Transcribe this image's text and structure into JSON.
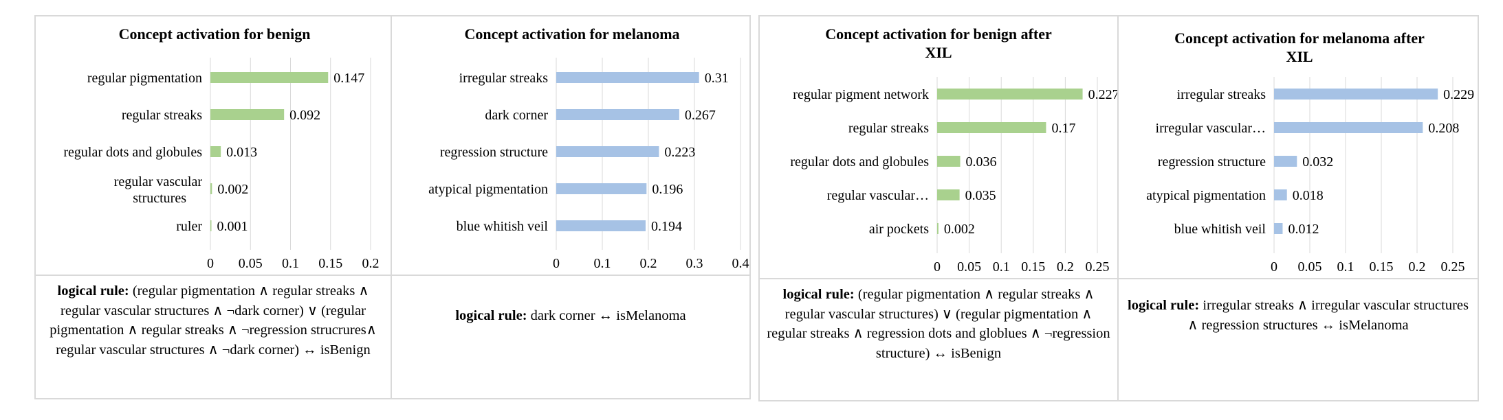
{
  "colors": {
    "benign": "#a9d18e",
    "melanoma": "#a6c2e5",
    "grid": "#d9d9d9"
  },
  "chart_data": [
    {
      "type": "bar",
      "title": "Concept activation for benign",
      "categories": [
        "regular pigmentation",
        "regular streaks",
        "regular dots and globules",
        "regular vascular structures",
        "ruler"
      ],
      "values": [
        0.147,
        0.092,
        0.013,
        0.002,
        0.001
      ],
      "value_labels": [
        "0.147",
        "0.092",
        "0.013",
        "0.002",
        "0.001"
      ],
      "xlim": [
        0,
        0.2
      ],
      "ticks": [
        0,
        0.05,
        0.1,
        0.15,
        0.2
      ],
      "tick_labels": [
        "0",
        "0.05",
        "0.1",
        "0.15",
        "0.2"
      ],
      "color": "#a9d18e",
      "grid": true
    },
    {
      "type": "bar",
      "title": "Concept activation for melanoma",
      "categories": [
        "irregular streaks",
        "dark corner",
        "regression structure",
        "atypical pigmentation",
        "blue whitish veil"
      ],
      "values": [
        0.31,
        0.267,
        0.223,
        0.196,
        0.194
      ],
      "value_labels": [
        "0.31",
        "0.267",
        "0.223",
        "0.196",
        "0.194"
      ],
      "xlim": [
        0,
        0.4
      ],
      "ticks": [
        0,
        0.1,
        0.2,
        0.3,
        0.4
      ],
      "tick_labels": [
        "0",
        "0.1",
        "0.2",
        "0.3",
        "0.4"
      ],
      "color": "#a6c2e5",
      "grid": true
    },
    {
      "type": "bar",
      "title": "Concept activation for benign after XIL",
      "categories": [
        "regular pigment network",
        "regular streaks",
        "regular dots and globules",
        "regular vascular…",
        "air pockets"
      ],
      "values": [
        0.227,
        0.17,
        0.036,
        0.035,
        0.002
      ],
      "value_labels": [
        "0.227",
        "0.17",
        "0.036",
        "0.035",
        "0.002"
      ],
      "xlim": [
        0,
        0.25
      ],
      "ticks": [
        0,
        0.05,
        0.1,
        0.15,
        0.2,
        0.25
      ],
      "tick_labels": [
        "0",
        "0.05",
        "0.1",
        "0.15",
        "0.2",
        "0.25"
      ],
      "color": "#a9d18e",
      "grid": true
    },
    {
      "type": "bar",
      "title": "Concept activation for melanoma after XIL",
      "categories": [
        "irregular streaks",
        "irregular vascular…",
        "regression structure",
        "atypical pigmentation",
        "blue whitish veil"
      ],
      "values": [
        0.229,
        0.208,
        0.032,
        0.018,
        0.012
      ],
      "value_labels": [
        "0.229",
        "0.208",
        "0.032",
        "0.018",
        "0.012"
      ],
      "xlim": [
        0,
        0.25
      ],
      "ticks": [
        0,
        0.05,
        0.1,
        0.15,
        0.2,
        0.25
      ],
      "tick_labels": [
        "0",
        "0.05",
        "0.1",
        "0.15",
        "0.2",
        "0.25"
      ],
      "color": "#a6c2e5",
      "grid": true
    }
  ],
  "rules": [
    {
      "label": "logical rule:",
      "text": "(regular pigmentation ∧ regular streaks ∧ regular vascular structures ∧ ¬dark corner) ∨ (regular pigmentation ∧ regular streaks ∧ ¬regression strucrures∧ regular vascular structures ∧ ¬dark corner)  ↔ isBenign"
    },
    {
      "label": "logical rule:",
      "text": "dark corner ↔ isMelanoma"
    },
    {
      "label": "logical rule:",
      "text": "(regular pigmentation ∧ regular streaks ∧ regular vascular structures) ∨ (regular pigmentation ∧ regular streaks ∧ regression dots and globlues ∧ ¬regression structure)  ↔ isBenign"
    },
    {
      "label": "logical rule:",
      "text": "irregular streaks  ∧  irregular vascular structures ∧ regression structures ↔ isMelanoma"
    }
  ]
}
